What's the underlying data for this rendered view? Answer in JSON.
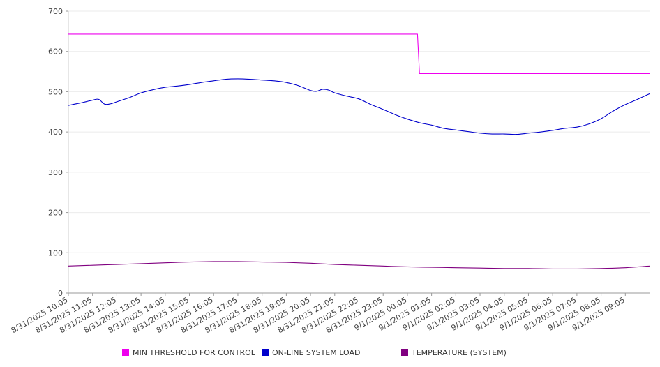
{
  "chart_data": {
    "type": "line",
    "ylim": [
      0,
      700
    ],
    "yticks": [
      0,
      100,
      200,
      300,
      400,
      500,
      600,
      700
    ],
    "grid": true,
    "legend_position": "bottom",
    "xrange": [
      "8/31/2025 10:05",
      "9/1/2025 10:05"
    ],
    "xticks": [
      "8/31/2025 10:05",
      "8/31/2025 11:05",
      "8/31/2025 12:05",
      "8/31/2025 13:05",
      "8/31/2025 14:05",
      "8/31/2025 15:05",
      "8/31/2025 16:05",
      "8/31/2025 17:05",
      "8/31/2025 18:05",
      "8/31/2025 19:05",
      "8/31/2025 20:05",
      "8/31/2025 21:05",
      "8/31/2025 22:05",
      "8/31/2025 23:05",
      "9/1/2025 00:05",
      "9/1/2025 01:05",
      "9/1/2025 02:05",
      "9/1/2025 03:05",
      "9/1/2025 04:05",
      "9/1/2025 05:05",
      "9/1/2025 06:05",
      "9/1/2025 07:05",
      "9/1/2025 08:05",
      "9/1/2025 09:05"
    ],
    "series": [
      {
        "name": "MIN THRESHOLD FOR CONTROL",
        "color": "#ee00ee",
        "x": [
          "8/31/2025 10:05",
          "9/1/2025 00:30",
          "9/1/2025 00:35",
          "9/1/2025 10:05"
        ],
        "values": [
          643,
          643,
          545,
          545
        ]
      },
      {
        "name": "ON-LINE SYSTEM LOAD",
        "color": "#0000cc",
        "x": [
          "8/31/2025 10:05",
          "8/31/2025 10:35",
          "8/31/2025 11:05",
          "8/31/2025 11:20",
          "8/31/2025 11:35",
          "8/31/2025 11:50",
          "8/31/2025 12:05",
          "8/31/2025 12:35",
          "8/31/2025 13:05",
          "8/31/2025 13:35",
          "8/31/2025 14:05",
          "8/31/2025 14:35",
          "8/31/2025 15:05",
          "8/31/2025 15:35",
          "8/31/2025 16:05",
          "8/31/2025 16:35",
          "8/31/2025 17:05",
          "8/31/2025 17:35",
          "8/31/2025 18:05",
          "8/31/2025 18:35",
          "8/31/2025 19:05",
          "8/31/2025 19:35",
          "8/31/2025 20:05",
          "8/31/2025 20:20",
          "8/31/2025 20:35",
          "8/31/2025 20:50",
          "8/31/2025 21:05",
          "8/31/2025 21:35",
          "8/31/2025 22:05",
          "8/31/2025 22:35",
          "8/31/2025 23:05",
          "8/31/2025 23:35",
          "9/1/2025 00:05",
          "9/1/2025 00:35",
          "9/1/2025 01:05",
          "9/1/2025 01:35",
          "9/1/2025 02:05",
          "9/1/2025 02:35",
          "9/1/2025 03:05",
          "9/1/2025 03:35",
          "9/1/2025 04:05",
          "9/1/2025 04:35",
          "9/1/2025 05:05",
          "9/1/2025 05:35",
          "9/1/2025 06:05",
          "9/1/2025 06:35",
          "9/1/2025 07:05",
          "9/1/2025 07:35",
          "9/1/2025 08:05",
          "9/1/2025 08:35",
          "9/1/2025 09:05",
          "9/1/2025 09:35",
          "9/1/2025 10:05"
        ],
        "values": [
          466,
          472,
          479,
          481,
          469,
          470,
          475,
          485,
          497,
          505,
          511,
          514,
          518,
          523,
          527,
          531,
          532,
          531,
          529,
          527,
          523,
          515,
          503,
          501,
          506,
          504,
          497,
          489,
          482,
          468,
          456,
          443,
          432,
          423,
          417,
          409,
          405,
          401,
          397,
          395,
          395,
          394,
          397,
          400,
          404,
          409,
          412,
          420,
          433,
          452,
          468,
          481,
          495
        ]
      },
      {
        "name": "TEMPERATURE (SYSTEM)",
        "color": "#800080",
        "x": [
          "8/31/2025 10:05",
          "8/31/2025 11:05",
          "8/31/2025 12:05",
          "8/31/2025 13:05",
          "8/31/2025 14:05",
          "8/31/2025 15:05",
          "8/31/2025 16:05",
          "8/31/2025 17:05",
          "8/31/2025 18:05",
          "8/31/2025 19:05",
          "8/31/2025 20:05",
          "8/31/2025 21:05",
          "8/31/2025 22:05",
          "8/31/2025 23:05",
          "9/1/2025 00:05",
          "9/1/2025 01:05",
          "9/1/2025 02:05",
          "9/1/2025 03:05",
          "9/1/2025 04:05",
          "9/1/2025 05:05",
          "9/1/2025 06:05",
          "9/1/2025 07:05",
          "9/1/2025 08:05",
          "9/1/2025 09:05",
          "9/1/2025 10:05"
        ],
        "values": [
          67,
          69,
          71,
          73,
          75,
          77,
          78,
          78,
          77,
          76,
          74,
          71,
          69,
          67,
          65,
          64,
          63,
          62,
          61,
          61,
          60,
          60,
          61,
          63,
          67
        ]
      }
    ]
  }
}
